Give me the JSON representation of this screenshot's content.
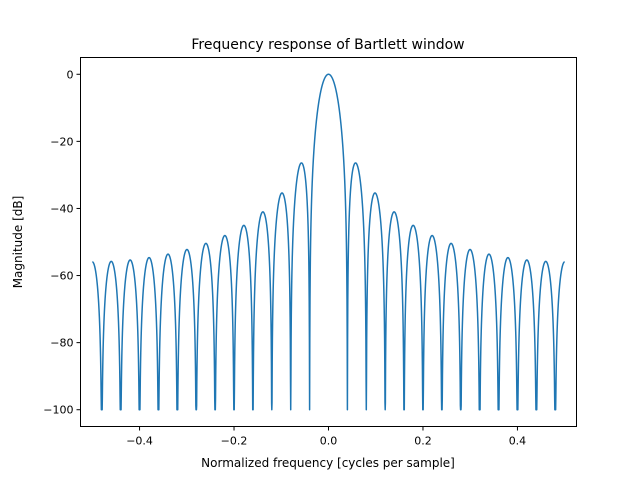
{
  "chart_data": {
    "type": "line",
    "title": "Frequency response of Bartlett window",
    "xlabel": "Normalized frequency [cycles per sample]",
    "ylabel": "Magnitude [dB]",
    "xlim": [
      -0.525,
      0.525
    ],
    "ylim": [
      -105,
      5
    ],
    "xticks": [
      -0.4,
      -0.2,
      0.0,
      0.2,
      0.4
    ],
    "xtick_labels": [
      "−0.4",
      "−0.2",
      "0.0",
      "0.2",
      "0.4"
    ],
    "yticks": [
      0,
      -20,
      -40,
      -60,
      -80,
      -100
    ],
    "ytick_labels": [
      "0",
      "−20",
      "−40",
      "−60",
      "−80",
      "−100"
    ],
    "grid": false,
    "legend": "none",
    "line_color": "#1f77b4",
    "clip_floor_db": -100,
    "series": [
      {
        "x": [
          -0.5,
          -0.48,
          -0.46,
          -0.44,
          -0.42,
          -0.4,
          -0.38,
          -0.36,
          -0.34,
          -0.32,
          -0.3,
          -0.28,
          -0.26,
          -0.24,
          -0.22,
          -0.2,
          -0.18,
          -0.16,
          -0.14,
          -0.12,
          -0.1,
          -0.08,
          -0.06,
          -0.04,
          0.0,
          0.04,
          0.06,
          0.08,
          0.1,
          0.12,
          0.14,
          0.16,
          0.18,
          0.2,
          0.22,
          0.24,
          0.26,
          0.28,
          0.3,
          0.32,
          0.34,
          0.36,
          0.38,
          0.4,
          0.42,
          0.44,
          0.46,
          0.48,
          0.5
        ],
        "values": [
          -56,
          -100,
          -56,
          -100,
          -56,
          -100,
          -55,
          -100,
          -54,
          -100,
          -53,
          -100,
          -51,
          -100,
          -48,
          -100,
          -45,
          -100,
          -41,
          -100,
          -36,
          -100,
          -27,
          -100,
          0,
          -100,
          -27,
          -100,
          -36,
          -100,
          -41,
          -100,
          -45,
          -100,
          -48,
          -100,
          -51,
          -100,
          -53,
          -100,
          -54,
          -100,
          -55,
          -100,
          -56,
          -100,
          -56,
          -100,
          -56
        ]
      }
    ]
  }
}
